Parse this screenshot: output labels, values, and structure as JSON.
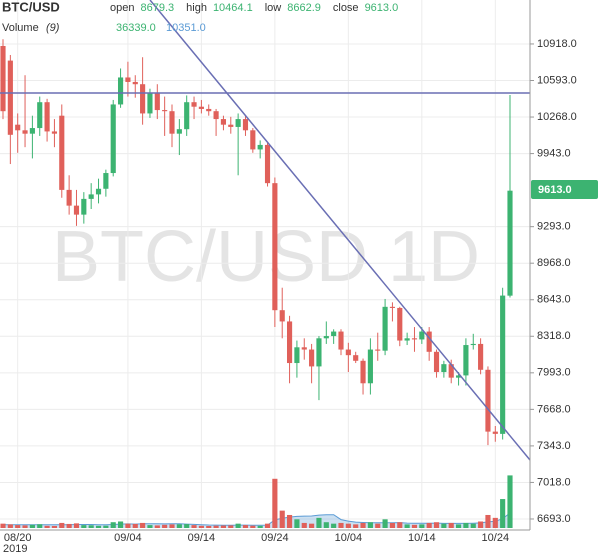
{
  "chart_data": {
    "type": "candlestick",
    "header": {
      "symbol": "BTC/USD",
      "fields": [
        {
          "name": "open",
          "value_label": "8679.3"
        },
        {
          "name": "high",
          "value_label": "10464.1"
        },
        {
          "name": "low",
          "value_label": "8662.9"
        },
        {
          "name": "close",
          "value_label": "9613.0"
        }
      ]
    },
    "volume_header": {
      "name": "Volume",
      "period": "(9)",
      "value_label": "36339.0",
      "ma_label": "10351.0"
    },
    "watermark": "BTC/USD 1D",
    "year_label": "2019",
    "last_price_label": "9613.0",
    "categories": [
      null,
      null,
      "08/20",
      null,
      null,
      null,
      null,
      null,
      null,
      null,
      null,
      null,
      null,
      null,
      null,
      null,
      null,
      "09/04",
      null,
      null,
      null,
      null,
      null,
      null,
      null,
      null,
      null,
      "09/14",
      null,
      null,
      null,
      null,
      null,
      null,
      null,
      null,
      null,
      "09/24",
      null,
      null,
      null,
      null,
      null,
      null,
      null,
      null,
      null,
      "10/04",
      null,
      null,
      null,
      null,
      null,
      null,
      null,
      null,
      null,
      "10/14",
      null,
      null,
      null,
      null,
      null,
      null,
      null,
      null,
      null,
      "10/24",
      null,
      null
    ],
    "open": [
      10900,
      10770,
      10200,
      10150,
      10120,
      10170,
      10400,
      10140,
      10280,
      9620,
      9480,
      9400,
      9540,
      9580,
      9630,
      9770,
      10380,
      10620,
      10580,
      10560,
      10300,
      10480,
      10330,
      10320,
      10120,
      10160,
      10400,
      10360,
      10340,
      10320,
      10250,
      10200,
      10180,
      10250,
      10150,
      9980,
      10020,
      9680,
      8550,
      8450,
      8080,
      8220,
      8200,
      8050,
      8300,
      8320,
      8360,
      8200,
      8150,
      8100,
      7900,
      8200,
      8190,
      8580,
      8570,
      8280,
      8300,
      8290,
      8360,
      8180,
      8000,
      8070,
      7950,
      7970,
      8240,
      8250,
      8020,
      7470,
      7450,
      8679.3
    ],
    "high": [
      10960,
      10820,
      10300,
      10640,
      10280,
      10450,
      10430,
      10250,
      10380,
      9750,
      9620,
      9600,
      9680,
      9720,
      9800,
      10420,
      10700,
      10760,
      10640,
      10800,
      10520,
      10560,
      10450,
      10380,
      10250,
      10460,
      10450,
      10420,
      10380,
      10340,
      10280,
      10270,
      10300,
      10280,
      10170,
      10060,
      10050,
      9730,
      8750,
      8500,
      8280,
      8300,
      8250,
      8320,
      8450,
      8380,
      8380,
      8260,
      8180,
      8120,
      8300,
      8350,
      8650,
      8620,
      8580,
      8350,
      8400,
      8400,
      8400,
      8200,
      8100,
      8110,
      8000,
      8300,
      8340,
      8300,
      8050,
      7520,
      8750,
      10464.1
    ],
    "low": [
      10250,
      9850,
      9950,
      10000,
      9900,
      10100,
      10050,
      10000,
      9550,
      9400,
      9300,
      9320,
      9450,
      9500,
      9560,
      9740,
      10350,
      10450,
      10440,
      10200,
      10260,
      10250,
      10100,
      10000,
      9930,
      10100,
      10250,
      10300,
      10280,
      10100,
      10150,
      10120,
      9750,
      10100,
      9950,
      9900,
      9650,
      8400,
      8300,
      7900,
      7950,
      8110,
      7900,
      7750,
      8250,
      8250,
      8150,
      8000,
      8080,
      7800,
      7800,
      8100,
      8150,
      8450,
      8230,
      8240,
      8180,
      8250,
      8100,
      7950,
      7950,
      7900,
      7880,
      7880,
      8200,
      7980,
      7350,
      7380,
      7400,
      8662.9
    ],
    "close": [
      10320,
      10110,
      10150,
      10120,
      10170,
      10400,
      10140,
      10120,
      9620,
      9480,
      9400,
      9540,
      9580,
      9630,
      9770,
      10380,
      10620,
      10580,
      10560,
      10300,
      10480,
      10330,
      10320,
      10120,
      10160,
      10400,
      10360,
      10340,
      10320,
      10250,
      10200,
      10180,
      10250,
      10150,
      9980,
      10020,
      9680,
      8550,
      8450,
      8080,
      8220,
      8200,
      8050,
      8300,
      8320,
      8360,
      8200,
      8150,
      8100,
      7900,
      8200,
      8190,
      8580,
      8570,
      8280,
      8300,
      8290,
      8360,
      8180,
      8000,
      8070,
      7950,
      7970,
      8240,
      8250,
      8020,
      7470,
      7450,
      8680,
      9613.0
    ],
    "volume": [
      3000,
      2500,
      2000,
      1800,
      2200,
      2600,
      1500,
      1400,
      3500,
      2800,
      3200,
      2000,
      1900,
      1500,
      1600,
      4000,
      4500,
      3000,
      2800,
      3500,
      2000,
      1800,
      2200,
      2500,
      2600,
      2700,
      2000,
      1500,
      1400,
      1600,
      1700,
      1800,
      3000,
      2000,
      1600,
      1500,
      3000,
      34000,
      12000,
      9000,
      6000,
      3500,
      3000,
      7000,
      4000,
      3000,
      3500,
      3000,
      2500,
      3500,
      4000,
      3000,
      6000,
      3500,
      4000,
      2500,
      2200,
      2500,
      3500,
      4000,
      3000,
      3500,
      2500,
      3500,
      3000,
      4500,
      9000,
      7000,
      20000,
      36339
    ],
    "volume_ma": [
      2300,
      2300,
      2300,
      2300,
      2300,
      2300,
      2300,
      2300,
      2300,
      2300,
      2400,
      2400,
      2400,
      2300,
      2200,
      2400,
      2700,
      2800,
      2700,
      2900,
      2900,
      2900,
      2800,
      2900,
      2900,
      2700,
      2500,
      2300,
      2100,
      2000,
      1900,
      1900,
      2000,
      2000,
      1900,
      1900,
      2000,
      5600,
      6700,
      7500,
      8000,
      8200,
      8300,
      8900,
      9100,
      9200,
      5800,
      4800,
      4100,
      3800,
      3600,
      3600,
      3600,
      3600,
      3700,
      3400,
      3300,
      3300,
      3300,
      3400,
      3200,
      3200,
      3200,
      3200,
      3300,
      3500,
      4200,
      4600,
      6400,
      10351
    ],
    "ylim": [
      6595,
      11309
    ],
    "volume_lim": [
      0,
      38000
    ],
    "yticks": [
      {
        "value": 10918,
        "label": "10918.0"
      },
      {
        "value": 10593,
        "label": "10593.0"
      },
      {
        "value": 10268,
        "label": "10268.0"
      },
      {
        "value": 9943,
        "label": "9943.0"
      },
      {
        "value": 9293,
        "label": "9293.0"
      },
      {
        "value": 8968,
        "label": "8968.0"
      },
      {
        "value": 8643,
        "label": "8643.0"
      },
      {
        "value": 8318,
        "label": "8318.0"
      },
      {
        "value": 7993,
        "label": "7993.0"
      },
      {
        "value": 7668,
        "label": "7668.0"
      },
      {
        "value": 7343,
        "label": "7343.0"
      },
      {
        "value": 7018,
        "label": "7018.0"
      },
      {
        "value": 6693,
        "label": "6693.0"
      }
    ],
    "up_color": "#3cb371",
    "down_color": "#e0605a",
    "volume_ma_color": "#5b9bd5",
    "grid": true
  }
}
